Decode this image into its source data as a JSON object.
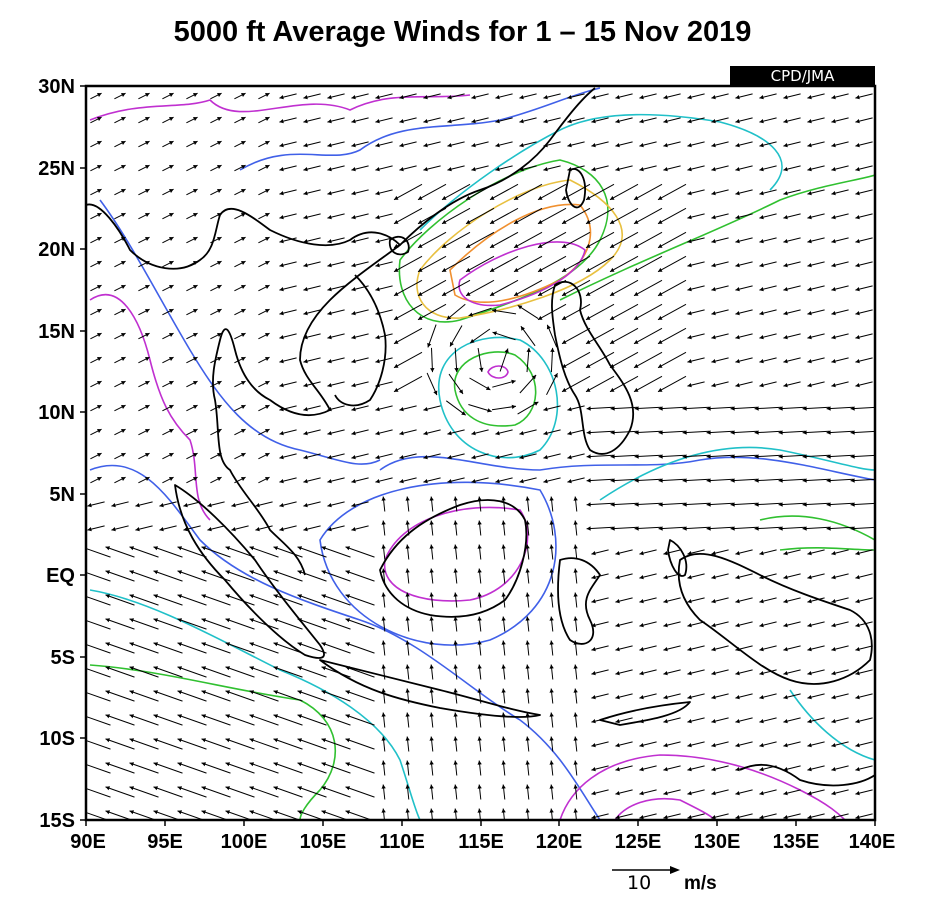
{
  "title": "5000 ft Average Winds for 1 – 15 Nov 2019",
  "source_badge": "CPD/JMA",
  "axes": {
    "lat_labels": [
      "30N",
      "25N",
      "20N",
      "15N",
      "10N",
      "5N",
      "EQ",
      "5S",
      "10S",
      "15S"
    ],
    "lon_labels": [
      "90E",
      "95E",
      "100E",
      "105E",
      "110E",
      "115E",
      "120E",
      "125E",
      "130E",
      "135E",
      "140E"
    ]
  },
  "reference_vector": {
    "value": "10",
    "unit": "m/s"
  },
  "colors": {
    "coast": "#000000",
    "contour_blue": "#4060e8",
    "contour_magenta": "#c030d0",
    "contour_cyan": "#20c0c8",
    "contour_green": "#30c030",
    "contour_yellow": "#e8c040",
    "contour_orange": "#f09030"
  }
}
